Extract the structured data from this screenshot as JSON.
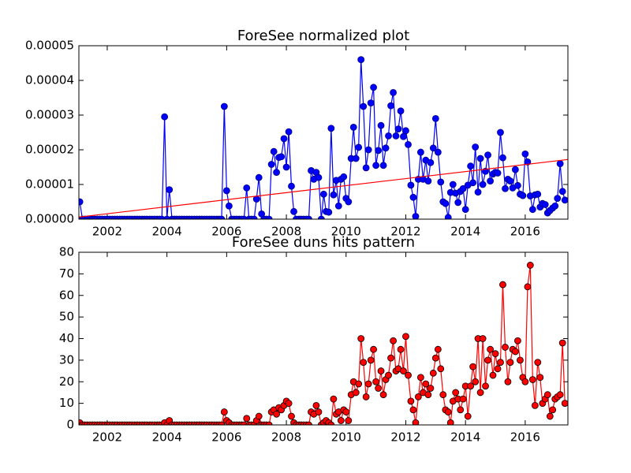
{
  "chart_data": [
    {
      "type": "line",
      "title": "ForeSee normalized plot",
      "x": [
        2001.08,
        2001.17,
        2001.25,
        2001.33,
        2001.42,
        2001.5,
        2001.58,
        2001.67,
        2001.75,
        2001.83,
        2001.92,
        2002,
        2002.08,
        2002.17,
        2002.25,
        2002.33,
        2002.42,
        2002.5,
        2002.58,
        2002.67,
        2002.75,
        2002.83,
        2002.92,
        2003,
        2003.08,
        2003.17,
        2003.25,
        2003.33,
        2003.42,
        2003.5,
        2003.58,
        2003.67,
        2003.75,
        2003.83,
        2003.92,
        2004,
        2004.08,
        2004.17,
        2004.25,
        2004.33,
        2004.42,
        2004.5,
        2004.58,
        2004.67,
        2004.75,
        2004.83,
        2004.92,
        2005,
        2005.08,
        2005.17,
        2005.25,
        2005.33,
        2005.42,
        2005.5,
        2005.58,
        2005.67,
        2005.75,
        2005.83,
        2005.92,
        2006,
        2006.08,
        2006.17,
        2006.25,
        2006.33,
        2006.42,
        2006.5,
        2006.58,
        2006.67,
        2006.75,
        2006.83,
        2006.92,
        2007,
        2007.08,
        2007.17,
        2007.25,
        2007.33,
        2007.42,
        2007.5,
        2007.58,
        2007.67,
        2007.75,
        2007.83,
        2007.92,
        2008,
        2008.08,
        2008.17,
        2008.25,
        2008.33,
        2008.42,
        2008.5,
        2008.58,
        2008.67,
        2008.75,
        2008.83,
        2008.92,
        2009,
        2009.08,
        2009.17,
        2009.25,
        2009.33,
        2009.42,
        2009.5,
        2009.58,
        2009.67,
        2009.75,
        2009.83,
        2009.92,
        2010,
        2010.08,
        2010.17,
        2010.25,
        2010.33,
        2010.42,
        2010.5,
        2010.58,
        2010.67,
        2010.75,
        2010.83,
        2010.92,
        2011,
        2011.08,
        2011.17,
        2011.25,
        2011.33,
        2011.42,
        2011.5,
        2011.58,
        2011.67,
        2011.75,
        2011.83,
        2011.92,
        2012,
        2012.08,
        2012.17,
        2012.25,
        2012.33,
        2012.42,
        2012.5,
        2012.58,
        2012.67,
        2012.75,
        2012.83,
        2012.92,
        2013,
        2013.08,
        2013.17,
        2013.25,
        2013.33,
        2013.42,
        2013.5,
        2013.58,
        2013.67,
        2013.75,
        2013.83,
        2013.92,
        2014,
        2014.08,
        2014.17,
        2014.25,
        2014.33,
        2014.42,
        2014.5,
        2014.58,
        2014.67,
        2014.75,
        2014.83,
        2014.92,
        2015,
        2015.08,
        2015.17,
        2015.25,
        2015.33,
        2015.42,
        2015.5,
        2015.58,
        2015.67,
        2015.75,
        2015.83,
        2015.92,
        2016,
        2016.08,
        2016.17,
        2016.25,
        2016.33,
        2016.42,
        2016.5,
        2016.58,
        2016.67,
        2016.75,
        2016.83,
        2016.92,
        2017,
        2017.08,
        2017.17,
        2017.25,
        2017.33
      ],
      "series": [
        {
          "color": "#0000ff",
          "marker_color": "#0000ff",
          "marker_edge": "#000080",
          "values": [
            5e-06,
            0,
            0,
            0,
            0,
            0,
            0,
            0,
            0,
            0,
            0,
            0,
            0,
            0,
            0,
            0,
            0,
            0,
            0,
            0,
            0,
            0,
            0,
            0,
            0,
            0,
            0,
            0,
            0,
            0,
            0,
            0,
            0,
            0,
            2.95e-05,
            0,
            8.5e-06,
            0,
            0,
            0,
            0,
            0,
            0,
            0,
            0,
            0,
            0,
            0,
            0,
            0,
            0,
            0,
            0,
            0,
            0,
            0,
            0,
            0,
            3.25e-05,
            8.2e-06,
            3.8e-06,
            0,
            0,
            0,
            0,
            0,
            0,
            9e-06,
            0,
            0,
            0,
            5.8e-06,
            1.2e-05,
            1.5e-06,
            0,
            0,
            0,
            1.58e-05,
            1.95e-05,
            1.35e-05,
            1.78e-05,
            1.8e-05,
            2.32e-05,
            1.5e-05,
            2.52e-05,
            9.5e-06,
            2.2e-06,
            0,
            0,
            0,
            0,
            0,
            0,
            1.4e-05,
            1.15e-05,
            1.35e-05,
            1.2e-05,
            0,
            7.2e-06,
            2.2e-06,
            2e-06,
            2.62e-05,
            7e-06,
            1.12e-05,
            3.8e-06,
            1.15e-05,
            1.22e-05,
            6e-06,
            5e-06,
            1.75e-05,
            2.65e-05,
            1.75e-05,
            2.07e-05,
            4.6e-05,
            3.25e-05,
            1.48e-05,
            2e-05,
            3.35e-05,
            3.8e-05,
            1.55e-05,
            1.98e-05,
            2.7e-05,
            1.55e-05,
            2.05e-05,
            2.4e-05,
            3.27e-05,
            3.65e-05,
            2.4e-05,
            2.6e-05,
            3.12e-05,
            2.38e-05,
            2.55e-05,
            2.15e-05,
            9.8e-06,
            6.3e-06,
            8e-07,
            1.15e-05,
            1.93e-05,
            1.15e-05,
            1.7e-05,
            1.1e-05,
            1.63e-05,
            2.05e-05,
            2.9e-05,
            1.93e-05,
            1.07e-05,
            5e-06,
            4.5e-06,
            5e-07,
            7.7e-06,
            1e-05,
            7.5e-06,
            4.8e-06,
            8e-06,
            8.8e-06,
            2.8e-06,
            9.8e-06,
            1.53e-05,
            1.05e-05,
            2.08e-05,
            7.8e-06,
            1.75e-05,
            1e-05,
            1.38e-05,
            1.85e-05,
            1.1e-05,
            1.3e-05,
            1.35e-05,
            1.33e-05,
            2.5e-05,
            1.77e-05,
            8.8e-06,
            1.15e-05,
            1.1e-05,
            9e-06,
            1.43e-05,
            9.7e-06,
            7.2e-06,
            6.8e-06,
            1.88e-05,
            1.65e-05,
            6.7e-06,
            2.8e-06,
            7e-06,
            7.2e-06,
            3.5e-06,
            4.5e-06,
            4.2e-06,
            1.8e-06,
            2.5e-06,
            3.2e-06,
            3.8e-06,
            6e-06,
            1.6e-05,
            8e-06,
            5.5e-06
          ]
        },
        {
          "color": "#ff0000",
          "x": [
            2001.05,
            2017.43
          ],
          "values": [
            6e-07,
            1.72e-05
          ]
        }
      ],
      "xlim": [
        2001.05,
        2017.43
      ],
      "xticks": [
        2002,
        2004,
        2006,
        2008,
        2010,
        2012,
        2014,
        2016
      ],
      "ylim": [
        0,
        5e-05
      ],
      "yticks": [
        {
          "value": 0,
          "label": "0.00000"
        },
        {
          "value": 1e-05,
          "label": "0.00001"
        },
        {
          "value": 2e-05,
          "label": "0.00002"
        },
        {
          "value": 3e-05,
          "label": "0.00003"
        },
        {
          "value": 4e-05,
          "label": "0.00004"
        },
        {
          "value": 5e-05,
          "label": "0.00005"
        }
      ]
    },
    {
      "type": "line",
      "title": "ForeSee duns hits pattern",
      "x": [
        2001.08,
        2001.17,
        2001.25,
        2001.33,
        2001.42,
        2001.5,
        2001.58,
        2001.67,
        2001.75,
        2001.83,
        2001.92,
        2002,
        2002.08,
        2002.17,
        2002.25,
        2002.33,
        2002.42,
        2002.5,
        2002.58,
        2002.67,
        2002.75,
        2002.83,
        2002.92,
        2003,
        2003.08,
        2003.17,
        2003.25,
        2003.33,
        2003.42,
        2003.5,
        2003.58,
        2003.67,
        2003.75,
        2003.83,
        2003.92,
        2004,
        2004.08,
        2004.17,
        2004.25,
        2004.33,
        2004.42,
        2004.5,
        2004.58,
        2004.67,
        2004.75,
        2004.83,
        2004.92,
        2005,
        2005.08,
        2005.17,
        2005.25,
        2005.33,
        2005.42,
        2005.5,
        2005.58,
        2005.67,
        2005.75,
        2005.83,
        2005.92,
        2006,
        2006.08,
        2006.17,
        2006.25,
        2006.33,
        2006.42,
        2006.5,
        2006.58,
        2006.67,
        2006.75,
        2006.83,
        2006.92,
        2007,
        2007.08,
        2007.17,
        2007.25,
        2007.33,
        2007.42,
        2007.5,
        2007.58,
        2007.67,
        2007.75,
        2007.83,
        2007.92,
        2008,
        2008.08,
        2008.17,
        2008.25,
        2008.33,
        2008.42,
        2008.5,
        2008.58,
        2008.67,
        2008.75,
        2008.83,
        2008.92,
        2009,
        2009.08,
        2009.17,
        2009.25,
        2009.33,
        2009.42,
        2009.5,
        2009.58,
        2009.67,
        2009.75,
        2009.83,
        2009.92,
        2010,
        2010.08,
        2010.17,
        2010.25,
        2010.33,
        2010.42,
        2010.5,
        2010.58,
        2010.67,
        2010.75,
        2010.83,
        2010.92,
        2011,
        2011.08,
        2011.17,
        2011.25,
        2011.33,
        2011.42,
        2011.5,
        2011.58,
        2011.67,
        2011.75,
        2011.83,
        2011.92,
        2012,
        2012.08,
        2012.17,
        2012.25,
        2012.33,
        2012.42,
        2012.5,
        2012.58,
        2012.67,
        2012.75,
        2012.83,
        2012.92,
        2013,
        2013.08,
        2013.17,
        2013.25,
        2013.33,
        2013.42,
        2013.5,
        2013.58,
        2013.67,
        2013.75,
        2013.83,
        2013.92,
        2014,
        2014.08,
        2014.17,
        2014.25,
        2014.33,
        2014.42,
        2014.5,
        2014.58,
        2014.67,
        2014.75,
        2014.83,
        2014.92,
        2015,
        2015.08,
        2015.17,
        2015.25,
        2015.33,
        2015.42,
        2015.5,
        2015.58,
        2015.67,
        2015.75,
        2015.83,
        2015.92,
        2016,
        2016.08,
        2016.17,
        2016.25,
        2016.33,
        2016.42,
        2016.5,
        2016.58,
        2016.67,
        2016.75,
        2016.83,
        2016.92,
        2017,
        2017.08,
        2017.17,
        2017.25,
        2017.33
      ],
      "series": [
        {
          "color": "#ff0000",
          "marker_color": "#ff0000",
          "marker_edge": "#000000",
          "values": [
            1,
            0,
            0,
            0,
            0,
            0,
            0,
            0,
            0,
            0,
            0,
            0,
            0,
            0,
            0,
            0,
            0,
            0,
            0,
            0,
            0,
            0,
            0,
            0,
            0,
            0,
            0,
            0,
            0,
            0,
            0,
            0,
            0,
            0,
            1,
            0,
            2,
            0,
            0,
            0,
            0,
            0,
            0,
            0,
            0,
            0,
            0,
            0,
            0,
            0,
            0,
            0,
            0,
            0,
            0,
            0,
            0,
            0,
            6,
            2,
            1,
            0,
            0,
            0,
            0,
            0,
            0,
            3,
            0,
            0,
            0,
            2,
            4,
            0,
            0,
            0,
            0,
            6,
            7,
            5,
            8,
            7,
            9,
            11,
            10,
            4,
            1,
            0,
            0,
            0,
            0,
            0,
            0,
            6,
            5,
            9,
            6,
            0,
            1,
            2,
            1,
            0,
            12,
            5,
            6,
            2,
            7,
            6,
            2,
            14,
            20,
            15,
            19,
            40,
            29,
            13,
            19,
            30,
            35,
            20,
            17,
            25,
            14,
            21,
            23,
            31,
            39,
            25,
            26,
            35,
            25,
            41,
            23,
            11,
            7,
            1,
            13,
            22,
            15,
            19,
            14,
            17,
            24,
            31,
            35,
            26,
            14,
            7,
            6,
            1,
            11,
            15,
            12,
            7,
            12,
            18,
            4,
            18,
            27,
            20,
            40,
            15,
            40,
            18,
            30,
            35,
            23,
            33,
            26,
            29,
            65,
            36,
            20,
            29,
            35,
            34,
            39,
            30,
            22,
            20,
            64,
            74,
            21,
            9,
            29,
            22,
            10,
            12,
            14,
            4,
            7,
            12,
            13,
            14,
            38,
            10
          ]
        }
      ],
      "xlim": [
        2001.05,
        2017.43
      ],
      "xticks": [
        2002,
        2004,
        2006,
        2008,
        2010,
        2012,
        2014,
        2016
      ],
      "ylim": [
        0,
        80
      ],
      "yticks": [
        0,
        10,
        20,
        30,
        40,
        50,
        60,
        70,
        80
      ]
    }
  ]
}
